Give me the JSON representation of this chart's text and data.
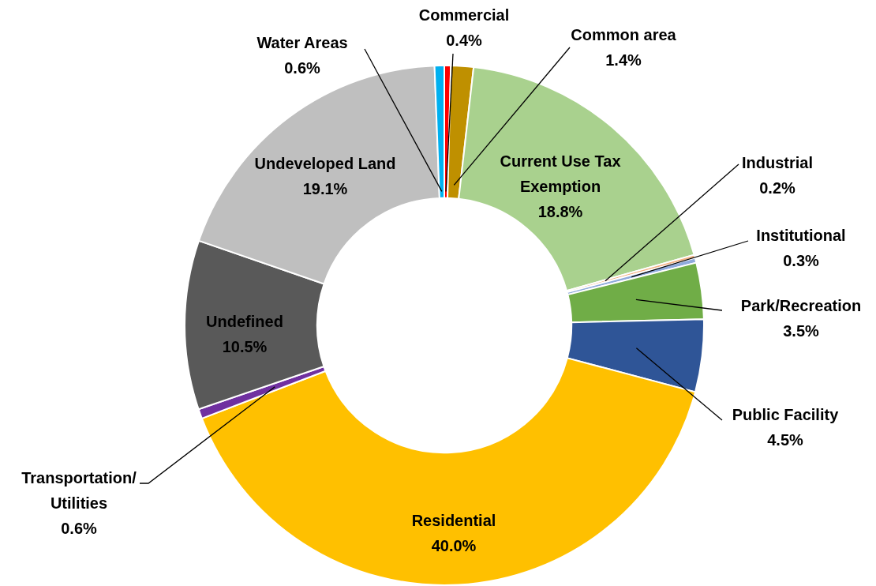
{
  "chart_data": {
    "type": "donut",
    "categories": [
      "Commercial",
      "Common area",
      "Current Use Tax Exemption",
      "Industrial",
      "Institutional",
      "Park/Recreation",
      "Public Facility",
      "Residential",
      "Transportation/Utilities",
      "Undefined",
      "Undeveloped Land",
      "Water Areas"
    ],
    "values": [
      0.4,
      1.4,
      18.8,
      0.2,
      0.3,
      3.5,
      4.5,
      40.0,
      0.6,
      10.5,
      19.1,
      0.6
    ],
    "value_labels": [
      "0.4%",
      "1.4%",
      "18.8%",
      "0.2%",
      "0.3%",
      "3.5%",
      "4.5%",
      "40.0%",
      "0.6%",
      "10.5%",
      "19.1%",
      "0.6%"
    ],
    "colors": [
      "#ff0000",
      "#bf9000",
      "#a9d18e",
      "#f4b183",
      "#8faadc",
      "#70ad47",
      "#2f5597",
      "#ffc000",
      "#7030a0",
      "#595959",
      "#bfbfbf",
      "#00b0f0"
    ],
    "legend": false
  }
}
